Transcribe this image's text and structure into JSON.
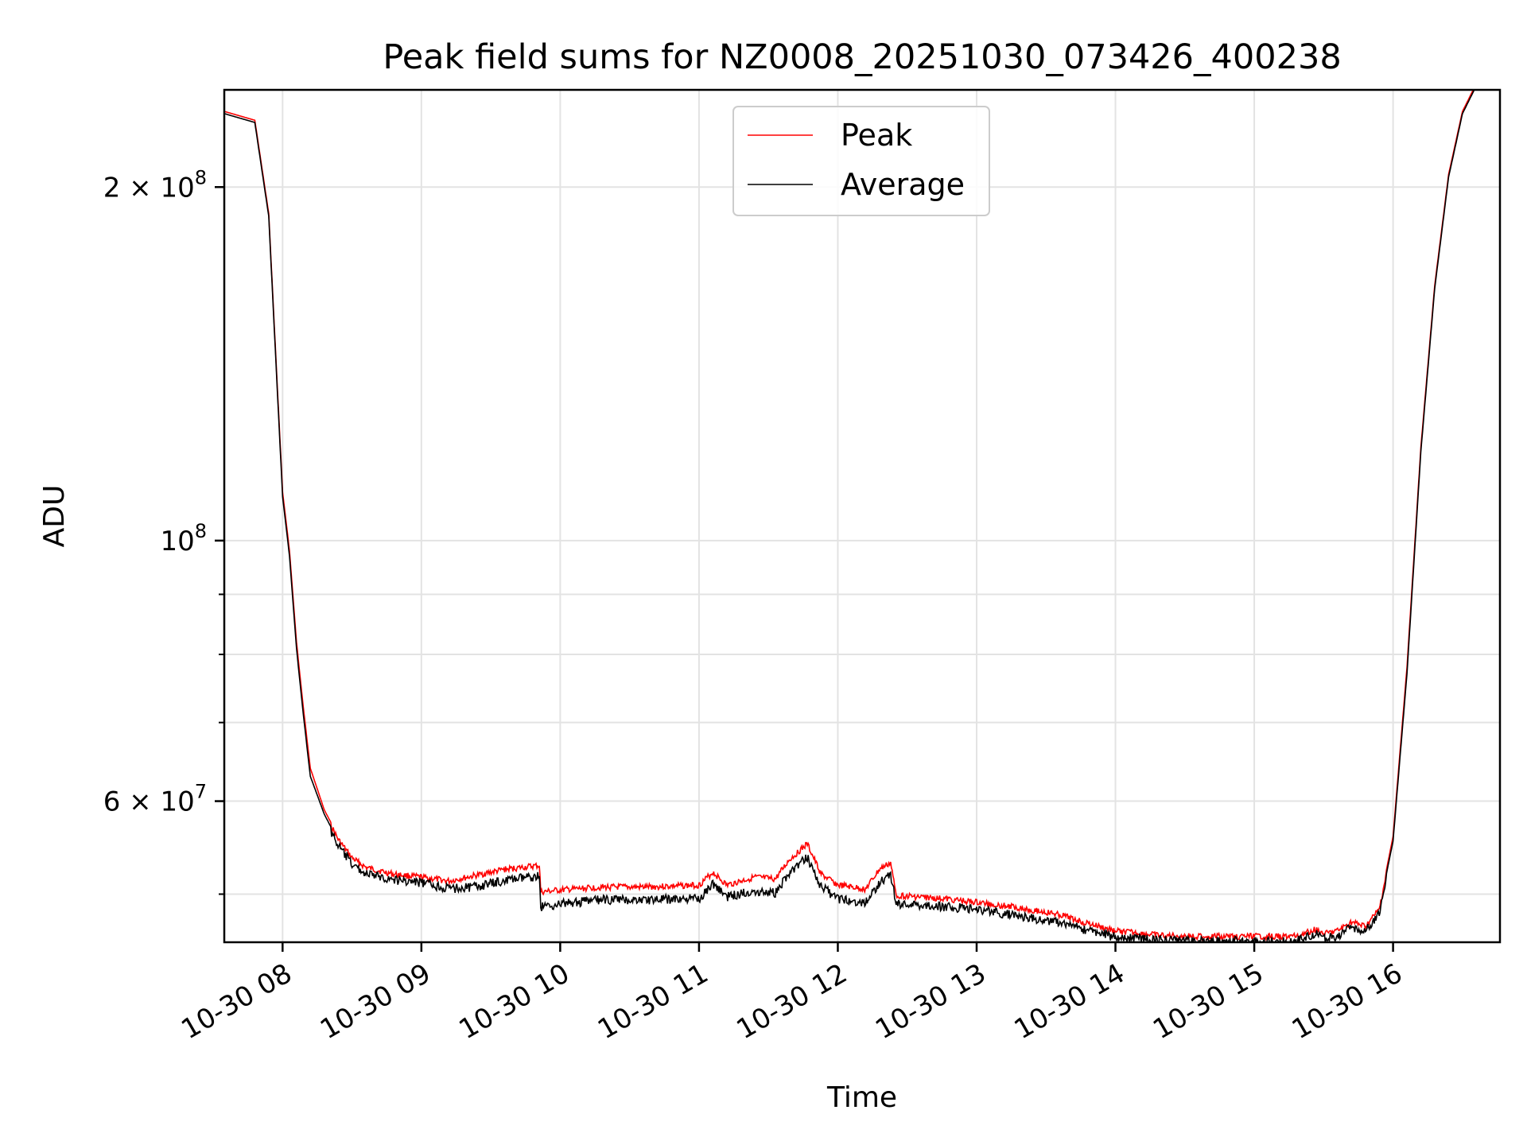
{
  "chart_data": {
    "type": "line",
    "title": "Peak field sums for NZ0008_20251030_073426_400238",
    "xlabel": "Time",
    "ylabel": "ADU",
    "yscale": "log",
    "xlim_hours": [
      7.58,
      16.77
    ],
    "ylim": [
      45500000,
      242000000
    ],
    "grid": true,
    "legend_position": "upper center",
    "x_ticks": [
      {
        "hour": 8,
        "label": "10-30 08"
      },
      {
        "hour": 9,
        "label": "10-30 09"
      },
      {
        "hour": 10,
        "label": "10-30 10"
      },
      {
        "hour": 11,
        "label": "10-30 11"
      },
      {
        "hour": 12,
        "label": "10-30 12"
      },
      {
        "hour": 13,
        "label": "10-30 13"
      },
      {
        "hour": 14,
        "label": "10-30 14"
      },
      {
        "hour": 15,
        "label": "10-30 15"
      },
      {
        "hour": 16,
        "label": "10-30 16"
      }
    ],
    "y_major_ticks": [
      {
        "value": 200000000,
        "base": "2 × 10",
        "exp": "8"
      },
      {
        "value": 100000000,
        "base": "10",
        "exp": "8"
      },
      {
        "value": 60000000,
        "base": "6 × 10",
        "exp": "7"
      }
    ],
    "y_minor_ticks": [
      50000000,
      70000000,
      80000000,
      90000000
    ],
    "series": [
      {
        "name": "Peak",
        "color": "#ff0000",
        "points": [
          [
            7.58,
            232000000
          ],
          [
            7.8,
            228000000
          ],
          [
            7.9,
            190000000
          ],
          [
            8.0,
            110000000
          ],
          [
            8.05,
            98000000
          ],
          [
            8.1,
            82000000
          ],
          [
            8.15,
            72000000
          ],
          [
            8.2,
            64000000
          ],
          [
            8.3,
            59000000
          ],
          [
            8.4,
            56000000
          ],
          [
            8.5,
            54000000
          ],
          [
            8.6,
            53000000
          ],
          [
            8.8,
            52300000
          ],
          [
            9.0,
            52000000
          ],
          [
            9.2,
            51600000
          ],
          [
            9.4,
            52200000
          ],
          [
            9.6,
            52800000
          ],
          [
            9.85,
            53200000
          ],
          [
            9.86,
            50500000
          ],
          [
            10.0,
            50700000
          ],
          [
            10.3,
            51000000
          ],
          [
            10.6,
            51000000
          ],
          [
            11.0,
            51200000
          ],
          [
            11.1,
            52500000
          ],
          [
            11.2,
            51200000
          ],
          [
            11.4,
            52000000
          ],
          [
            11.55,
            51800000
          ],
          [
            11.65,
            53800000
          ],
          [
            11.78,
            55500000
          ],
          [
            11.88,
            52300000
          ],
          [
            12.0,
            51200000
          ],
          [
            12.1,
            51000000
          ],
          [
            12.2,
            50800000
          ],
          [
            12.3,
            52800000
          ],
          [
            12.38,
            53500000
          ],
          [
            12.42,
            50200000
          ],
          [
            12.8,
            49800000
          ],
          [
            13.0,
            49500000
          ],
          [
            13.3,
            49000000
          ],
          [
            13.6,
            48300000
          ],
          [
            13.8,
            47500000
          ],
          [
            14.0,
            46800000
          ],
          [
            14.3,
            46400000
          ],
          [
            14.6,
            46300000
          ],
          [
            14.8,
            46300000
          ],
          [
            15.0,
            46300000
          ],
          [
            15.3,
            46300000
          ],
          [
            15.45,
            47000000
          ],
          [
            15.5,
            46500000
          ],
          [
            15.6,
            46800000
          ],
          [
            15.7,
            47600000
          ],
          [
            15.8,
            47200000
          ],
          [
            15.9,
            48800000
          ],
          [
            16.0,
            56000000
          ],
          [
            16.1,
            78000000
          ],
          [
            16.2,
            120000000
          ],
          [
            16.3,
            165000000
          ],
          [
            16.4,
            205000000
          ],
          [
            16.5,
            232000000
          ],
          [
            16.6,
            245000000
          ]
        ]
      },
      {
        "name": "Average",
        "color": "#000000",
        "points": [
          [
            7.58,
            231000000
          ],
          [
            7.8,
            227000000
          ],
          [
            7.9,
            189000000
          ],
          [
            8.0,
            109000000
          ],
          [
            8.05,
            97000000
          ],
          [
            8.1,
            81000000
          ],
          [
            8.15,
            71000000
          ],
          [
            8.2,
            63000000
          ],
          [
            8.3,
            58500000
          ],
          [
            8.4,
            55500000
          ],
          [
            8.5,
            53500000
          ],
          [
            8.6,
            52500000
          ],
          [
            8.8,
            51900000
          ],
          [
            9.0,
            51600000
          ],
          [
            9.2,
            51000000
          ],
          [
            9.4,
            51200000
          ],
          [
            9.6,
            51800000
          ],
          [
            9.85,
            52300000
          ],
          [
            9.86,
            49200000
          ],
          [
            10.0,
            49500000
          ],
          [
            10.3,
            49900000
          ],
          [
            10.6,
            49900000
          ],
          [
            11.0,
            50000000
          ],
          [
            11.1,
            51500000
          ],
          [
            11.2,
            50200000
          ],
          [
            11.4,
            50800000
          ],
          [
            11.55,
            50600000
          ],
          [
            11.65,
            52600000
          ],
          [
            11.78,
            54200000
          ],
          [
            11.88,
            51200000
          ],
          [
            12.0,
            50000000
          ],
          [
            12.1,
            49800000
          ],
          [
            12.2,
            49600000
          ],
          [
            12.3,
            51600000
          ],
          [
            12.38,
            52400000
          ],
          [
            12.42,
            49500000
          ],
          [
            12.8,
            49200000
          ],
          [
            13.0,
            49000000
          ],
          [
            13.3,
            48300000
          ],
          [
            13.6,
            47700000
          ],
          [
            13.8,
            47000000
          ],
          [
            14.0,
            46400000
          ],
          [
            14.3,
            46100000
          ],
          [
            14.6,
            46000000
          ],
          [
            14.8,
            46000000
          ],
          [
            15.0,
            46000000
          ],
          [
            15.3,
            46000000
          ],
          [
            15.45,
            46700000
          ],
          [
            15.5,
            46200000
          ],
          [
            15.6,
            46500000
          ],
          [
            15.7,
            47300000
          ],
          [
            15.8,
            46900000
          ],
          [
            15.9,
            48500000
          ],
          [
            16.0,
            55500000
          ],
          [
            16.1,
            77000000
          ],
          [
            16.2,
            119000000
          ],
          [
            16.3,
            164000000
          ],
          [
            16.4,
            204000000
          ],
          [
            16.5,
            231000000
          ],
          [
            16.6,
            244000000
          ]
        ]
      }
    ]
  }
}
